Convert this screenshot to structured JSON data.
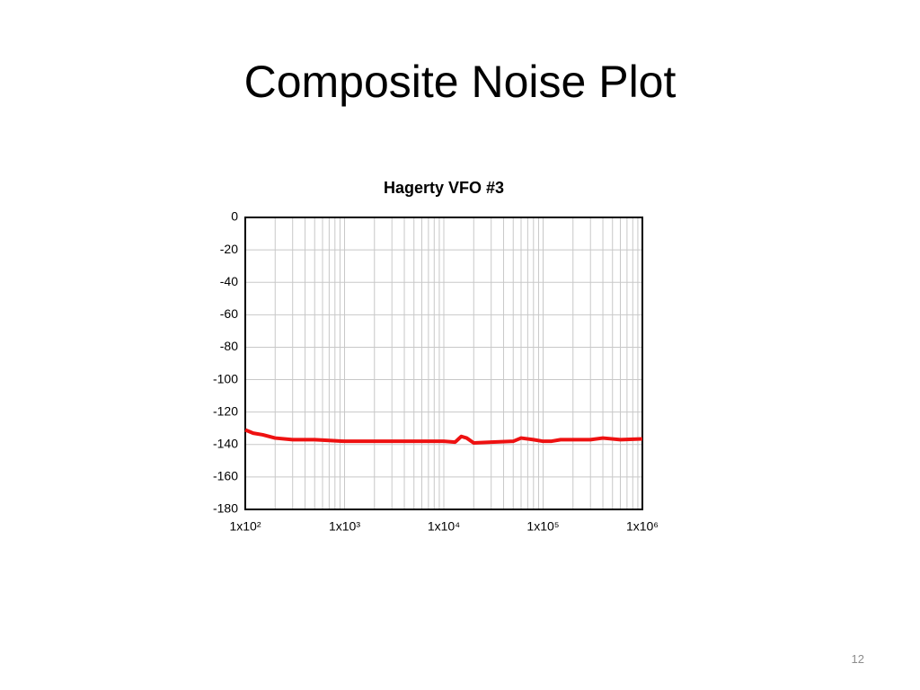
{
  "slide_title": "Composite Noise Plot",
  "slide_number": "12",
  "chart_data": {
    "type": "line",
    "title": "Hagerty VFO #3",
    "x": [
      100,
      120,
      150,
      200,
      300,
      500,
      700,
      1000,
      2000,
      5000,
      10000,
      13000,
      15000,
      17000,
      20000,
      30000,
      50000,
      60000,
      80000,
      100000,
      120000,
      150000,
      300000,
      400000,
      600000,
      1000000
    ],
    "values": [
      -131,
      -133,
      -134,
      -136,
      -137,
      -137,
      -137.5,
      -138,
      -138,
      -138,
      -138,
      -138.5,
      -135,
      -136,
      -139,
      -138.5,
      -138,
      -136,
      -137,
      -138,
      -138,
      -137,
      -137,
      -136,
      -137,
      -136.5
    ],
    "color": "#ee1111",
    "log_x": true,
    "xlim": [
      100,
      1000000
    ],
    "xticks": [
      {
        "value": 100,
        "label": "1x10²"
      },
      {
        "value": 1000,
        "label": "1x10³"
      },
      {
        "value": 10000,
        "label": "1x10⁴"
      },
      {
        "value": 100000,
        "label": "1x10⁵"
      },
      {
        "value": 1000000,
        "label": "1x10⁶"
      }
    ],
    "ylim": [
      -180,
      0
    ],
    "yticks": [
      0,
      -20,
      -40,
      -60,
      -80,
      -100,
      -120,
      -140,
      -160,
      -180
    ],
    "grid": true
  }
}
